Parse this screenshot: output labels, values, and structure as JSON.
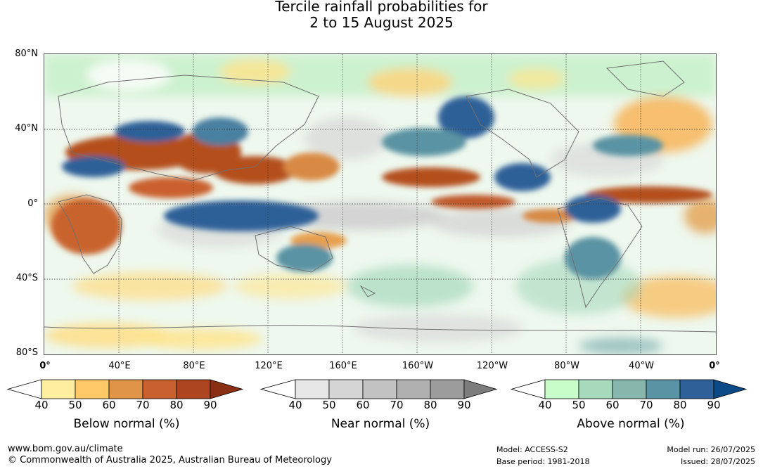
{
  "title_line1": "Tercile rainfall probabilities for",
  "title_line2": "2 to 15 August 2025",
  "map": {
    "lat_labels": [
      "80°N",
      "40°N",
      "0°",
      "40°S",
      "80°S"
    ],
    "lon_labels": [
      "0°",
      "40°E",
      "80°E",
      "120°E",
      "160°E",
      "160°W",
      "120°W",
      "80°W",
      "40°W",
      "0°"
    ]
  },
  "colorbars": [
    {
      "name": "below",
      "title": "Below normal (%)",
      "ticks": [
        "40",
        "50",
        "60",
        "70",
        "80",
        "90"
      ],
      "colors": [
        "#ffeea0",
        "#fdc865",
        "#e09447",
        "#c9602f",
        "#ad4521",
        "#8a2f13"
      ]
    },
    {
      "name": "near",
      "title": "Near normal (%)",
      "ticks": [
        "40",
        "50",
        "60",
        "70",
        "80",
        "90"
      ],
      "colors": [
        "#e6e6e6",
        "#d5d5d5",
        "#c2c2c2",
        "#b0b0b0",
        "#9c9c9c",
        "#7c7c7c"
      ]
    },
    {
      "name": "above",
      "title": "Above normal (%)",
      "ticks": [
        "40",
        "50",
        "60",
        "70",
        "80",
        "90"
      ],
      "colors": [
        "#c8fcc8",
        "#a7d9bc",
        "#86b6ac",
        "#5a93a3",
        "#2f6198",
        "#0b4a87"
      ]
    }
  ],
  "footer": {
    "url": "www.bom.gov.au/climate",
    "copyright": "© Commonwealth of Australia 2025, Australian Bureau of Meteorology",
    "model": "Model: ACCESS-S2",
    "base_period": "Base period: 1981-2018",
    "model_run": "Model run: 26/07/2025",
    "issued": "Issued: 28/07/2025"
  }
}
